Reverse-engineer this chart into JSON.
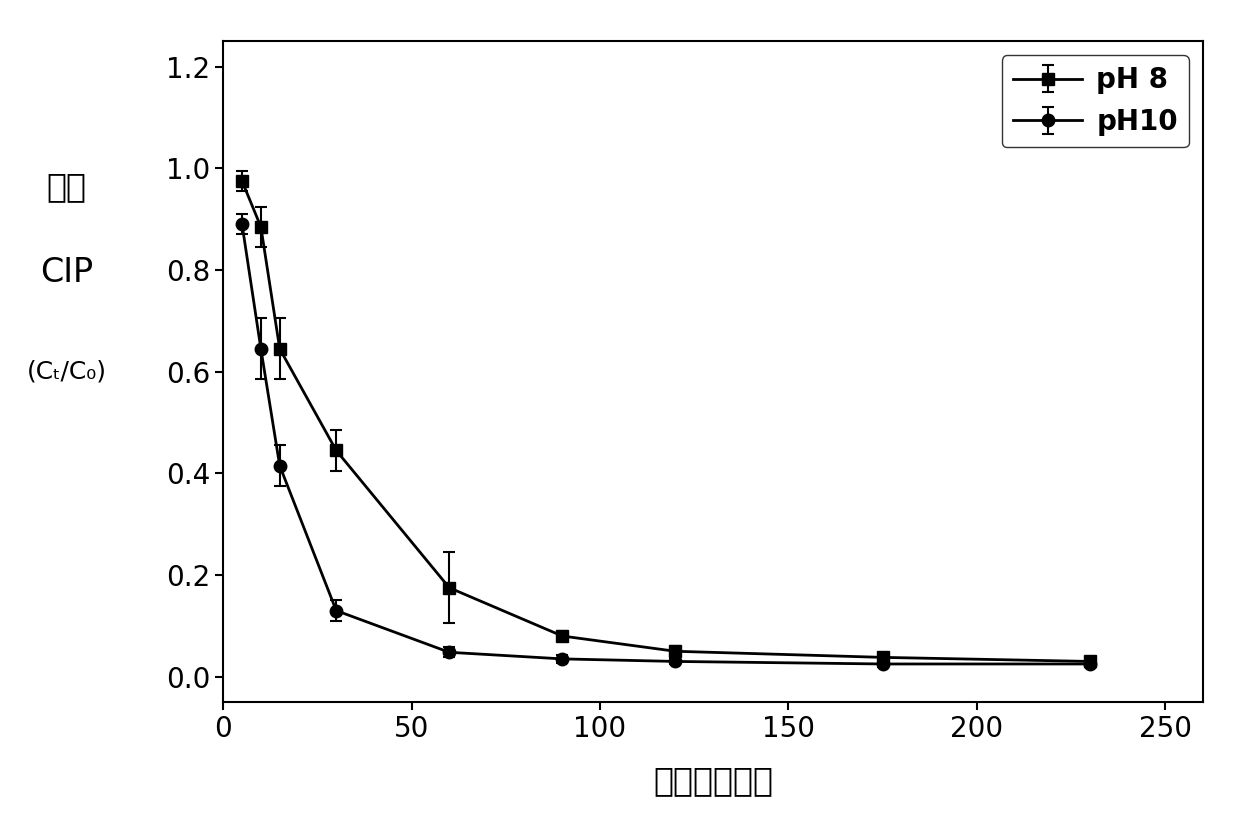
{
  "ph8_x": [
    5,
    10,
    15,
    30,
    60,
    90,
    120,
    175,
    230
  ],
  "ph8_y": [
    0.975,
    0.885,
    0.645,
    0.445,
    0.175,
    0.08,
    0.05,
    0.038,
    0.03
  ],
  "ph8_yerr": [
    0.02,
    0.04,
    0.06,
    0.04,
    0.07,
    0.01,
    0.01,
    0.008,
    0.005
  ],
  "ph10_x": [
    5,
    10,
    15,
    30,
    60,
    90,
    120,
    175,
    230
  ],
  "ph10_y": [
    0.89,
    0.645,
    0.415,
    0.13,
    0.048,
    0.035,
    0.03,
    0.025,
    0.025
  ],
  "ph10_yerr": [
    0.02,
    0.06,
    0.04,
    0.02,
    0.01,
    0.008,
    0.005,
    0.005,
    0.005
  ],
  "xlabel": "时间（分钟）",
  "ylabel_line1": "残留",
  "ylabel_line2": "CIP",
  "ylabel_line3": "(Cₜ/C₀)",
  "xlim": [
    0,
    260
  ],
  "ylim": [
    -0.05,
    1.25
  ],
  "xticks": [
    0,
    50,
    100,
    150,
    200,
    250
  ],
  "yticks": [
    0.0,
    0.2,
    0.4,
    0.6,
    0.8,
    1.0,
    1.2
  ],
  "legend_ph8": "pH 8",
  "legend_ph10": "pH10",
  "bg_color": "#ffffff",
  "line_color": "#000000"
}
